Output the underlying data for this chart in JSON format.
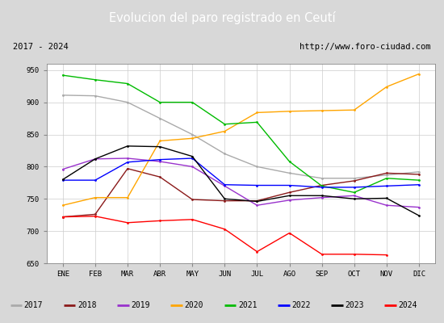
{
  "title": "Evolucion del paro registrado en Ceutí",
  "subtitle_left": "2017 - 2024",
  "subtitle_right": "http://www.foro-ciudad.com",
  "ylim": [
    650,
    960
  ],
  "yticks": [
    650,
    700,
    750,
    800,
    850,
    900,
    950
  ],
  "months": [
    "ENE",
    "FEB",
    "MAR",
    "ABR",
    "MAY",
    "JUN",
    "JUL",
    "AGO",
    "SEP",
    "OCT",
    "NOV",
    "DIC"
  ],
  "background_color": "#d8d8d8",
  "plot_bg": "#ffffff",
  "title_bg": "#4a8cc4",
  "subtitle_bg": "#e0e0e0",
  "series": {
    "2017": {
      "color": "#aaaaaa",
      "data": [
        911,
        910,
        900,
        875,
        850,
        820,
        800,
        790,
        782,
        782,
        787,
        792
      ]
    },
    "2018": {
      "color": "#8b1a1a",
      "data": [
        722,
        726,
        797,
        784,
        749,
        747,
        747,
        760,
        771,
        778,
        790,
        788
      ]
    },
    "2019": {
      "color": "#9932cc",
      "data": [
        796,
        812,
        813,
        808,
        800,
        770,
        740,
        748,
        752,
        755,
        740,
        737
      ]
    },
    "2020": {
      "color": "#ffa500",
      "data": [
        740,
        752,
        752,
        840,
        844,
        855,
        884,
        886,
        887,
        888,
        924,
        944
      ]
    },
    "2021": {
      "color": "#00bb00",
      "data": [
        942,
        935,
        929,
        900,
        900,
        866,
        869,
        808,
        770,
        760,
        782,
        779
      ]
    },
    "2022": {
      "color": "#0000ff",
      "data": [
        779,
        779,
        807,
        811,
        813,
        772,
        771,
        771,
        768,
        768,
        770,
        772
      ]
    },
    "2023": {
      "color": "#000000",
      "data": [
        780,
        812,
        832,
        831,
        816,
        750,
        746,
        755,
        755,
        750,
        751,
        724
      ]
    },
    "2024": {
      "color": "#ff0000",
      "data": [
        722,
        723,
        713,
        716,
        718,
        703,
        668,
        697,
        664,
        664,
        663,
        null
      ]
    }
  }
}
